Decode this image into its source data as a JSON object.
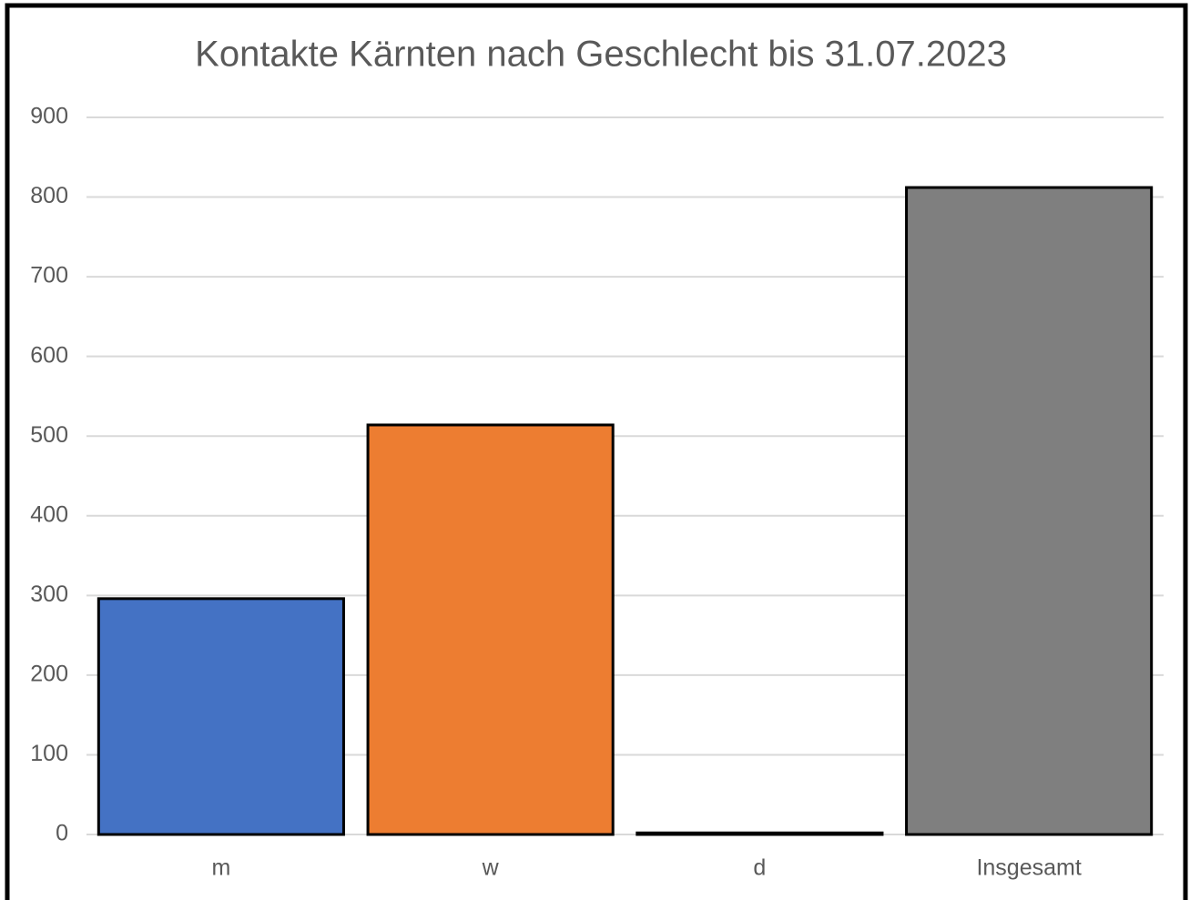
{
  "chart_data": {
    "type": "bar",
    "title": "Kontakte Kärnten nach Geschlecht bis 31.07.2023",
    "categories": [
      "m",
      "w",
      "d",
      "Insgesamt"
    ],
    "values": [
      296,
      514,
      2,
      812
    ],
    "colors": [
      "#4472c4",
      "#ed7d31",
      "#a5a5a5",
      "#7f7f7f"
    ],
    "ylim": [
      0,
      900
    ],
    "yticks": [
      0,
      100,
      200,
      300,
      400,
      500,
      600,
      700,
      800,
      900
    ],
    "grid": true
  }
}
